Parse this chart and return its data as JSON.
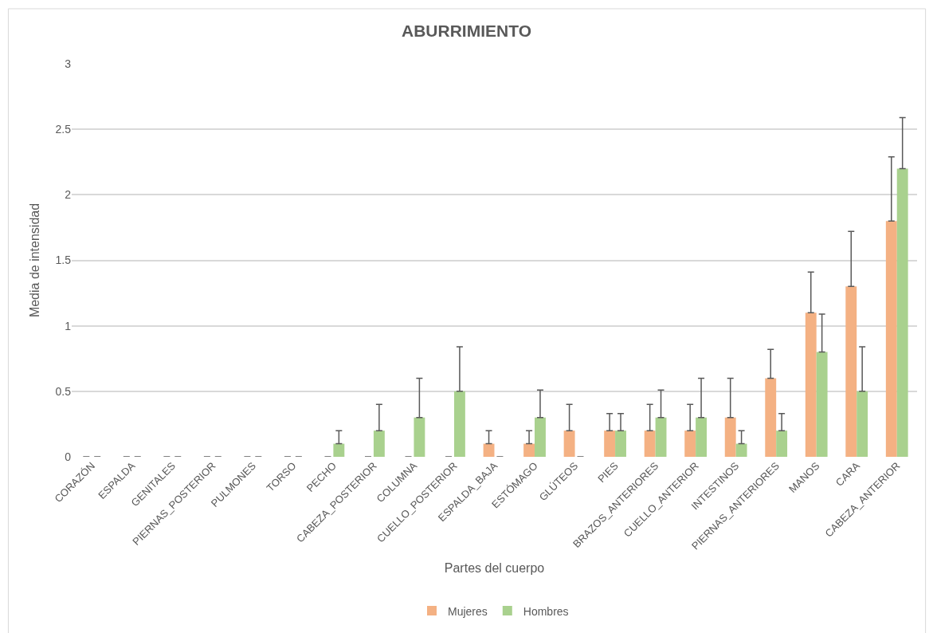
{
  "chart_data": {
    "type": "bar",
    "title": "ABURRIMIENTO",
    "xlabel": "Partes del cuerpo",
    "ylabel": "Media de intensidad",
    "categories": [
      "CORAZÓN",
      "ESPALDA",
      "GENITALES",
      "PIERNAS_POSTERIOR",
      "PULMONES",
      "TORSO",
      "PECHO",
      "CABEZA_POSTERIOR",
      "COLUMNA",
      "CUELLO_POSTERIOR",
      "ESPALDA_BAJA",
      "ESTÓMAGO",
      "GLÚTEOS",
      "PIES",
      "BRAZOS_ANTERIORES",
      "CUELLO_ANTERIOR",
      "INTESTINOS",
      "PIERNAS_ANTERIORES",
      "MANOS",
      "CARA",
      "CABEZA_ANTERIOR"
    ],
    "series": [
      {
        "name": "Mujeres",
        "color": "#f4b183",
        "values": [
          0,
          0,
          0,
          0,
          0,
          0,
          0,
          0,
          0,
          0,
          0.1,
          0.1,
          0.2,
          0.2,
          0.2,
          0.2,
          0.3,
          0.6,
          1.1,
          1.3,
          1.8
        ],
        "errors": [
          null,
          null,
          null,
          null,
          null,
          null,
          null,
          null,
          null,
          null,
          [
            0.1,
            0.2
          ],
          [
            0.1,
            0.2
          ],
          [
            0.2,
            0.4
          ],
          [
            0.2,
            0.33
          ],
          [
            0.2,
            0.4
          ],
          [
            0.2,
            0.4
          ],
          [
            0.3,
            0.6
          ],
          [
            0.6,
            0.82
          ],
          [
            1.1,
            1.41
          ],
          [
            1.3,
            1.72
          ],
          [
            1.8,
            2.29
          ]
        ]
      },
      {
        "name": "Hombres",
        "color": "#a9d18e",
        "values": [
          0,
          0,
          0,
          0,
          0,
          0,
          0.1,
          0.2,
          0.3,
          0.5,
          0,
          0.3,
          0,
          0.2,
          0.3,
          0.3,
          0.1,
          0.2,
          0.8,
          0.5,
          2.2
        ],
        "errors": [
          null,
          null,
          null,
          null,
          null,
          null,
          [
            0.1,
            0.2
          ],
          [
            0.2,
            0.4
          ],
          [
            0.3,
            0.6
          ],
          [
            0.5,
            0.84
          ],
          null,
          [
            0.3,
            0.51
          ],
          null,
          [
            0.2,
            0.33
          ],
          [
            0.3,
            0.51
          ],
          [
            0.3,
            0.6
          ],
          [
            0.1,
            0.2
          ],
          [
            0.2,
            0.33
          ],
          [
            0.8,
            1.09
          ],
          [
            0.5,
            0.84
          ],
          [
            2.2,
            2.59
          ]
        ]
      }
    ],
    "ylim": [
      0,
      3
    ],
    "yticks": [
      0,
      0.5,
      1,
      1.5,
      2,
      2.5,
      3
    ],
    "grid": "y",
    "legend": "bottom"
  }
}
